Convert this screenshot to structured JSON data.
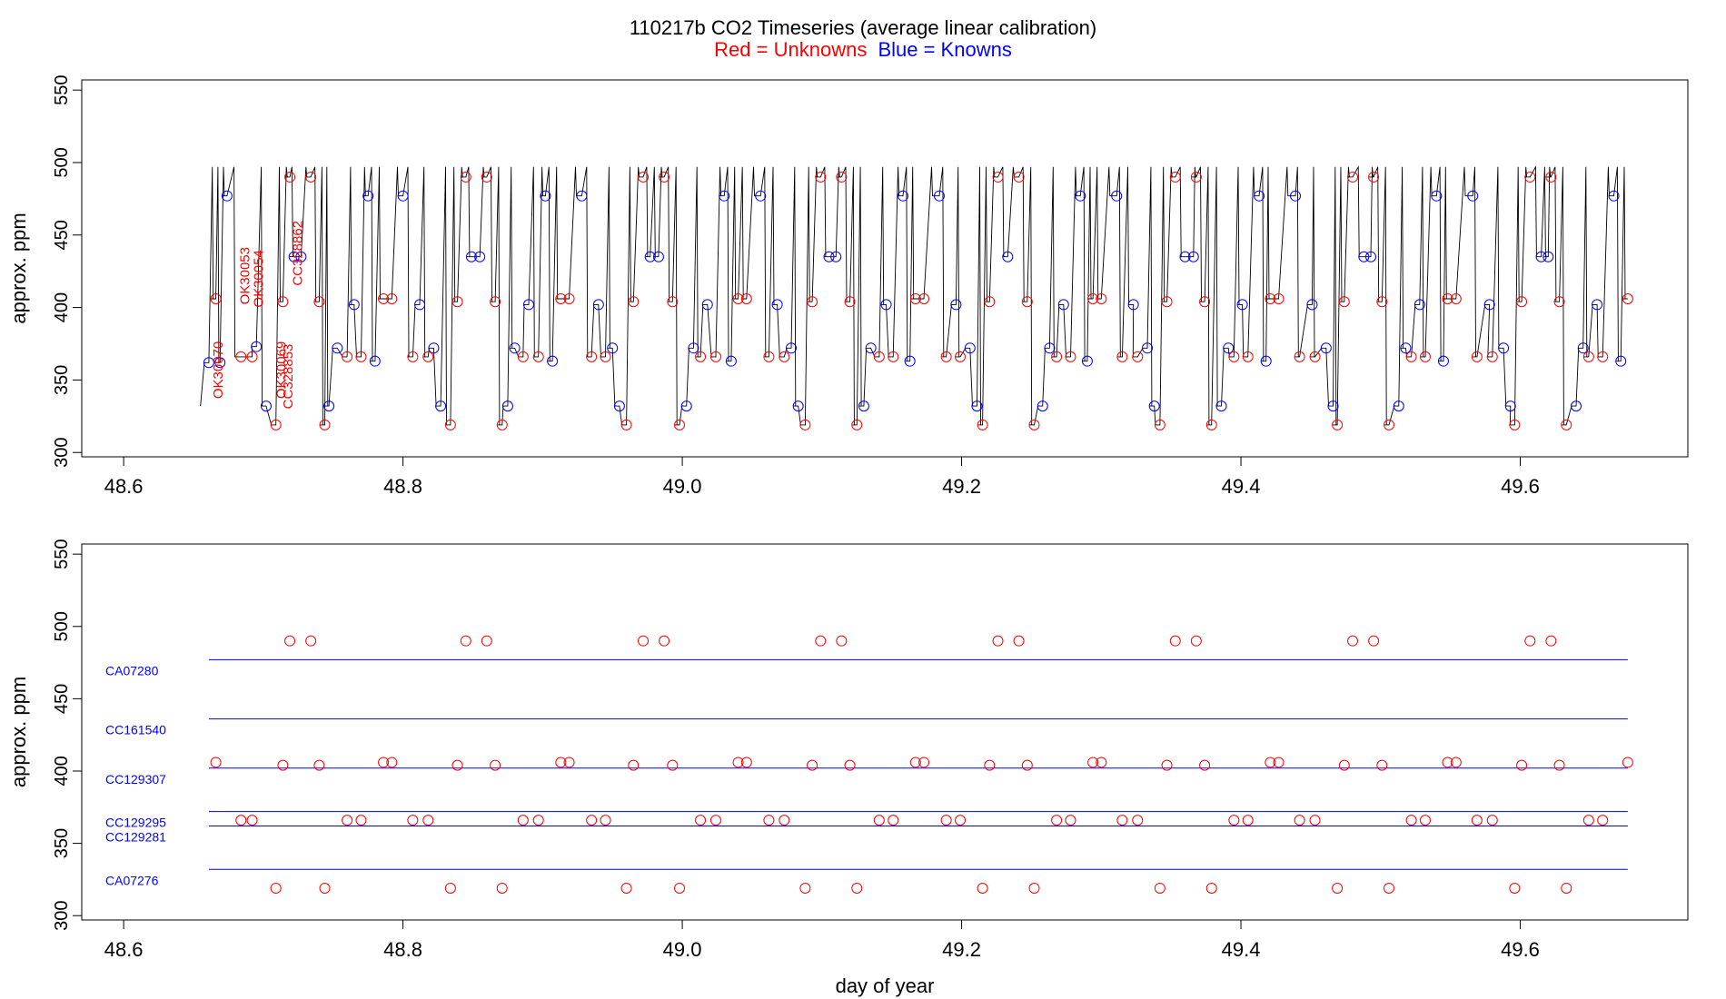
{
  "title": "110217b   CO2 Timeseries (average linear calibration)",
  "subtitle_red": "Red = Unknowns",
  "subtitle_blue": "Blue = Knowns",
  "colors": {
    "unknown": "#ff0000",
    "known": "#0000ff",
    "line": "#000000",
    "ref": "#0000ff"
  },
  "chart_data": [
    {
      "type": "line",
      "name": "top",
      "ylabel": "approx. ppm",
      "xlabel": "",
      "xlim": [
        48.57,
        49.72
      ],
      "ylim": [
        297,
        557
      ],
      "xticks": [
        48.6,
        48.8,
        49.0,
        49.2,
        49.4,
        49.6
      ],
      "yticks": [
        300,
        350,
        400,
        450,
        500,
        550
      ],
      "sample_labels": [
        {
          "text": "OK30070",
          "x": 48.667,
          "y": 337
        },
        {
          "text": "OK30053",
          "x": 48.686,
          "y": 402
        },
        {
          "text": "OK30054",
          "x": 48.696,
          "y": 400
        },
        {
          "text": "OK30069",
          "x": 48.712,
          "y": 337
        },
        {
          "text": "CC328853",
          "x": 48.717,
          "y": 330
        },
        {
          "text": "CC328862",
          "x": 48.724,
          "y": 415
        }
      ],
      "knowns": [
        [
          48.661,
          362
        ],
        [
          48.669,
          362
        ],
        [
          48.674,
          477
        ],
        [
          48.695,
          373
        ],
        [
          48.702,
          332
        ],
        [
          48.722,
          435
        ],
        [
          48.727,
          435
        ],
        [
          48.747,
          332
        ],
        [
          48.753,
          372
        ],
        [
          48.765,
          402
        ],
        [
          48.775,
          477
        ],
        [
          48.78,
          363
        ],
        [
          48.8,
          477
        ],
        [
          48.812,
          402
        ],
        [
          48.822,
          372
        ],
        [
          48.827,
          332
        ],
        [
          48.849,
          435
        ],
        [
          48.855,
          435
        ],
        [
          48.875,
          332
        ],
        [
          48.88,
          372
        ],
        [
          48.89,
          402
        ],
        [
          48.902,
          477
        ],
        [
          48.907,
          363
        ],
        [
          48.928,
          477
        ],
        [
          48.94,
          402
        ],
        [
          48.95,
          372
        ],
        [
          48.955,
          332
        ],
        [
          48.977,
          435
        ],
        [
          48.983,
          435
        ],
        [
          49.003,
          332
        ],
        [
          49.008,
          372
        ],
        [
          49.018,
          402
        ],
        [
          49.03,
          477
        ],
        [
          49.035,
          363
        ],
        [
          49.056,
          477
        ],
        [
          49.068,
          402
        ],
        [
          49.078,
          372
        ],
        [
          49.083,
          332
        ],
        [
          49.105,
          435
        ],
        [
          49.11,
          435
        ],
        [
          49.13,
          332
        ],
        [
          49.135,
          372
        ],
        [
          49.146,
          402
        ],
        [
          49.158,
          477
        ],
        [
          49.163,
          363
        ],
        [
          49.184,
          477
        ],
        [
          49.196,
          402
        ],
        [
          49.206,
          372
        ],
        [
          49.211,
          332
        ],
        [
          49.233,
          435
        ],
        [
          49.258,
          332
        ],
        [
          49.263,
          372
        ],
        [
          49.273,
          402
        ],
        [
          49.285,
          477
        ],
        [
          49.29,
          363
        ],
        [
          49.311,
          477
        ],
        [
          49.323,
          402
        ],
        [
          49.333,
          372
        ],
        [
          49.338,
          332
        ],
        [
          49.36,
          435
        ],
        [
          49.366,
          435
        ],
        [
          49.386,
          332
        ],
        [
          49.391,
          372
        ],
        [
          49.401,
          402
        ],
        [
          49.413,
          477
        ],
        [
          49.418,
          363
        ],
        [
          49.439,
          477
        ],
        [
          49.451,
          402
        ],
        [
          49.461,
          372
        ],
        [
          49.466,
          332
        ],
        [
          49.488,
          435
        ],
        [
          49.493,
          435
        ],
        [
          49.513,
          332
        ],
        [
          49.518,
          372
        ],
        [
          49.528,
          402
        ],
        [
          49.54,
          477
        ],
        [
          49.545,
          363
        ],
        [
          49.566,
          477
        ],
        [
          49.578,
          402
        ],
        [
          49.588,
          372
        ],
        [
          49.593,
          332
        ],
        [
          49.615,
          435
        ],
        [
          49.62,
          435
        ],
        [
          49.64,
          332
        ],
        [
          49.645,
          372
        ],
        [
          49.655,
          402
        ],
        [
          49.667,
          477
        ],
        [
          49.672,
          363
        ]
      ],
      "unknowns": [
        [
          48.666,
          406
        ],
        [
          48.684,
          366
        ],
        [
          48.692,
          366
        ],
        [
          48.709,
          319
        ],
        [
          48.714,
          404
        ],
        [
          48.719,
          490
        ],
        [
          48.734,
          490
        ],
        [
          48.74,
          404
        ],
        [
          48.744,
          319
        ],
        [
          48.76,
          366
        ],
        [
          48.77,
          366
        ],
        [
          48.786,
          406
        ],
        [
          48.792,
          406
        ],
        [
          48.807,
          366
        ],
        [
          48.818,
          366
        ],
        [
          48.834,
          319
        ],
        [
          48.839,
          404
        ],
        [
          48.845,
          490
        ],
        [
          48.86,
          490
        ],
        [
          48.866,
          404
        ],
        [
          48.871,
          319
        ],
        [
          48.886,
          366
        ],
        [
          48.897,
          366
        ],
        [
          48.913,
          406
        ],
        [
          48.919,
          406
        ],
        [
          48.935,
          366
        ],
        [
          48.945,
          366
        ],
        [
          48.96,
          319
        ],
        [
          48.965,
          404
        ],
        [
          48.972,
          490
        ],
        [
          48.987,
          490
        ],
        [
          48.993,
          404
        ],
        [
          48.998,
          319
        ],
        [
          49.013,
          366
        ],
        [
          49.024,
          366
        ],
        [
          49.04,
          406
        ],
        [
          49.046,
          406
        ],
        [
          49.062,
          366
        ],
        [
          49.073,
          366
        ],
        [
          49.088,
          319
        ],
        [
          49.093,
          404
        ],
        [
          49.099,
          490
        ],
        [
          49.114,
          490
        ],
        [
          49.12,
          404
        ],
        [
          49.125,
          319
        ],
        [
          49.141,
          366
        ],
        [
          49.151,
          366
        ],
        [
          49.167,
          406
        ],
        [
          49.173,
          406
        ],
        [
          49.189,
          366
        ],
        [
          49.199,
          366
        ],
        [
          49.215,
          319
        ],
        [
          49.22,
          404
        ],
        [
          49.226,
          490
        ],
        [
          49.241,
          490
        ],
        [
          49.247,
          404
        ],
        [
          49.252,
          319
        ],
        [
          49.268,
          366
        ],
        [
          49.278,
          366
        ],
        [
          49.294,
          406
        ],
        [
          49.3,
          406
        ],
        [
          49.315,
          366
        ],
        [
          49.326,
          366
        ],
        [
          49.342,
          319
        ],
        [
          49.347,
          404
        ],
        [
          49.353,
          490
        ],
        [
          49.368,
          490
        ],
        [
          49.374,
          404
        ],
        [
          49.379,
          319
        ],
        [
          49.395,
          366
        ],
        [
          49.405,
          366
        ],
        [
          49.421,
          406
        ],
        [
          49.427,
          406
        ],
        [
          49.442,
          366
        ],
        [
          49.453,
          366
        ],
        [
          49.469,
          319
        ],
        [
          49.474,
          404
        ],
        [
          49.48,
          490
        ],
        [
          49.495,
          490
        ],
        [
          49.501,
          404
        ],
        [
          49.506,
          319
        ],
        [
          49.522,
          366
        ],
        [
          49.532,
          366
        ],
        [
          49.548,
          406
        ],
        [
          49.554,
          406
        ],
        [
          49.569,
          366
        ],
        [
          49.58,
          366
        ],
        [
          49.596,
          319
        ],
        [
          49.601,
          404
        ],
        [
          49.607,
          490
        ],
        [
          49.622,
          490
        ],
        [
          49.628,
          404
        ],
        [
          49.633,
          319
        ],
        [
          49.649,
          366
        ],
        [
          49.659,
          366
        ],
        [
          49.677,
          406
        ]
      ]
    },
    {
      "type": "scatter",
      "name": "bottom",
      "ylabel": "approx. ppm",
      "xlabel": "day of year",
      "xlim": [
        48.57,
        49.72
      ],
      "ylim": [
        297,
        557
      ],
      "xticks": [
        48.6,
        48.8,
        49.0,
        49.2,
        49.4,
        49.6
      ],
      "yticks": [
        300,
        350,
        400,
        450,
        500,
        550
      ],
      "reference_lines": [
        {
          "name": "CA07280",
          "value": 477
        },
        {
          "name": "CC161540",
          "value": 436
        },
        {
          "name": "CC129307",
          "value": 402
        },
        {
          "name": "CC129295",
          "value": 372
        },
        {
          "name": "CC129281",
          "value": 362
        },
        {
          "name": "CA07276",
          "value": 332
        }
      ],
      "ref_x_range": [
        48.661,
        49.677
      ],
      "unknowns": [
        [
          48.666,
          406
        ],
        [
          48.684,
          366
        ],
        [
          48.692,
          366
        ],
        [
          48.709,
          319
        ],
        [
          48.714,
          404
        ],
        [
          48.719,
          490
        ],
        [
          48.734,
          490
        ],
        [
          48.74,
          404
        ],
        [
          48.744,
          319
        ],
        [
          48.76,
          366
        ],
        [
          48.77,
          366
        ],
        [
          48.786,
          406
        ],
        [
          48.792,
          406
        ],
        [
          48.807,
          366
        ],
        [
          48.818,
          366
        ],
        [
          48.834,
          319
        ],
        [
          48.839,
          404
        ],
        [
          48.845,
          490
        ],
        [
          48.86,
          490
        ],
        [
          48.866,
          404
        ],
        [
          48.871,
          319
        ],
        [
          48.886,
          366
        ],
        [
          48.897,
          366
        ],
        [
          48.913,
          406
        ],
        [
          48.919,
          406
        ],
        [
          48.935,
          366
        ],
        [
          48.945,
          366
        ],
        [
          48.96,
          319
        ],
        [
          48.965,
          404
        ],
        [
          48.972,
          490
        ],
        [
          48.987,
          490
        ],
        [
          48.993,
          404
        ],
        [
          48.998,
          319
        ],
        [
          49.013,
          366
        ],
        [
          49.024,
          366
        ],
        [
          49.04,
          406
        ],
        [
          49.046,
          406
        ],
        [
          49.062,
          366
        ],
        [
          49.073,
          366
        ],
        [
          49.088,
          319
        ],
        [
          49.093,
          404
        ],
        [
          49.099,
          490
        ],
        [
          49.114,
          490
        ],
        [
          49.12,
          404
        ],
        [
          49.125,
          319
        ],
        [
          49.141,
          366
        ],
        [
          49.151,
          366
        ],
        [
          49.167,
          406
        ],
        [
          49.173,
          406
        ],
        [
          49.189,
          366
        ],
        [
          49.199,
          366
        ],
        [
          49.215,
          319
        ],
        [
          49.22,
          404
        ],
        [
          49.226,
          490
        ],
        [
          49.241,
          490
        ],
        [
          49.247,
          404
        ],
        [
          49.252,
          319
        ],
        [
          49.268,
          366
        ],
        [
          49.278,
          366
        ],
        [
          49.294,
          406
        ],
        [
          49.3,
          406
        ],
        [
          49.315,
          366
        ],
        [
          49.326,
          366
        ],
        [
          49.342,
          319
        ],
        [
          49.347,
          404
        ],
        [
          49.353,
          490
        ],
        [
          49.368,
          490
        ],
        [
          49.374,
          404
        ],
        [
          49.379,
          319
        ],
        [
          49.395,
          366
        ],
        [
          49.405,
          366
        ],
        [
          49.421,
          406
        ],
        [
          49.427,
          406
        ],
        [
          49.442,
          366
        ],
        [
          49.453,
          366
        ],
        [
          49.469,
          319
        ],
        [
          49.474,
          404
        ],
        [
          49.48,
          490
        ],
        [
          49.495,
          490
        ],
        [
          49.501,
          404
        ],
        [
          49.506,
          319
        ],
        [
          49.522,
          366
        ],
        [
          49.532,
          366
        ],
        [
          49.548,
          406
        ],
        [
          49.554,
          406
        ],
        [
          49.569,
          366
        ],
        [
          49.58,
          366
        ],
        [
          49.596,
          319
        ],
        [
          49.601,
          404
        ],
        [
          49.607,
          490
        ],
        [
          49.622,
          490
        ],
        [
          49.628,
          404
        ],
        [
          49.633,
          319
        ],
        [
          49.649,
          366
        ],
        [
          49.659,
          366
        ],
        [
          49.677,
          406
        ]
      ]
    }
  ]
}
